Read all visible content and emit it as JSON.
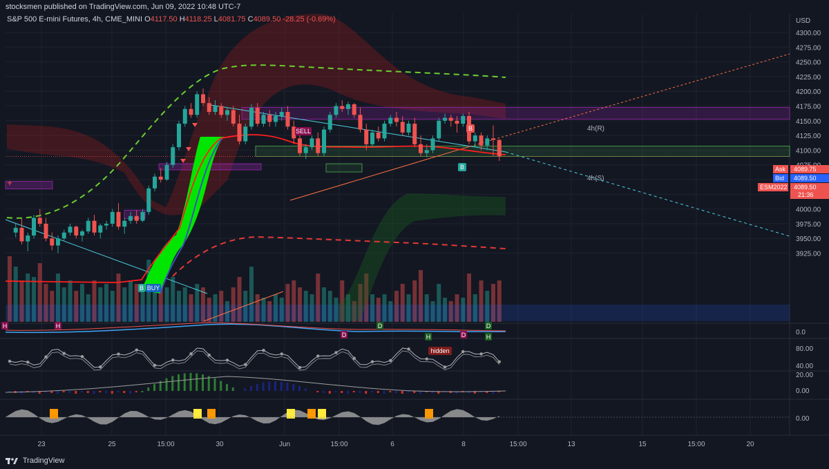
{
  "header": {
    "published": "stocksmen published on TradingView.com, Jun 09, 2022 10:48 UTC-7"
  },
  "legend": {
    "symbol": "S&P 500 E-mini Futures, 4h, CME_MINI",
    "open_label": "O",
    "open": "4117.50",
    "high_label": "H",
    "high": "4118.25",
    "low_label": "L",
    "low": "4081.75",
    "close_label": "C",
    "close": "4089.50",
    "change": "-28.25 (-0.69%)"
  },
  "price_axis": {
    "currency": "USD",
    "ticks": [
      "4300.00",
      "4275.00",
      "4250.00",
      "4225.00",
      "4200.00",
      "4175.00",
      "4150.00",
      "4125.00",
      "4100.00",
      "4075.00",
      "4050.00",
      "4025.00",
      "4000.00",
      "3975.00",
      "3950.00",
      "3925.00"
    ]
  },
  "price_tags": {
    "ask_label": "Ask",
    "ask": "4089.75",
    "bid_label": "Bid",
    "bid": "4089.50",
    "symbol_label": "ESM2022",
    "last": "4089.50",
    "countdown": "21:36",
    "colors": {
      "ask": "#ef5350",
      "bid": "#2962ff",
      "last": "#ef5350"
    }
  },
  "time_axis": {
    "labels": [
      "23",
      "25",
      "15:00",
      "30",
      "Jun",
      "15:00",
      "6",
      "8",
      "15:00",
      "13",
      "15",
      "15:00",
      "20"
    ]
  },
  "zones": {
    "resistance_label": "4h(R)",
    "support_label": "4h(S)"
  },
  "signals": {
    "buy": "BUY",
    "sell": "SELL",
    "b_marker": "B",
    "hidden": "hidden",
    "h_marker": "H",
    "d_marker": "D"
  },
  "panes": {
    "pane1_axis": [
      "0.0"
    ],
    "pane2_axis": [
      "80.00",
      "40.00"
    ],
    "pane3_axis": [
      "20.00",
      "0.00"
    ],
    "pane4_axis": [
      "0.00"
    ]
  },
  "footer": {
    "brand": "TradingView"
  },
  "chart_data": {
    "type": "candlestick",
    "symbol": "S&P 500 E-mini Futures",
    "interval": "4h",
    "ylim": [
      3905,
      4310
    ],
    "candles": [
      [
        4045,
        4048,
        4040,
        4044
      ],
      [
        3960,
        3975,
        3952,
        3968
      ],
      [
        3968,
        3985,
        3940,
        3945
      ],
      [
        3945,
        3960,
        3928,
        3955
      ],
      [
        3955,
        3990,
        3950,
        3985
      ],
      [
        3985,
        4000,
        3970,
        3975
      ],
      [
        3975,
        3985,
        3945,
        3950
      ],
      [
        3950,
        3960,
        3930,
        3938
      ],
      [
        3938,
        3955,
        3925,
        3950
      ],
      [
        3950,
        3965,
        3945,
        3960
      ],
      [
        3960,
        3975,
        3955,
        3970
      ],
      [
        3970,
        3972,
        3950,
        3955
      ],
      [
        3955,
        3965,
        3945,
        3962
      ],
      [
        3962,
        3985,
        3958,
        3980
      ],
      [
        3980,
        3990,
        3955,
        3960
      ],
      [
        3960,
        3975,
        3950,
        3972
      ],
      [
        3972,
        3980,
        3965,
        3975
      ],
      [
        3975,
        4000,
        3970,
        3995
      ],
      [
        3995,
        4010,
        3965,
        3970
      ],
      [
        3970,
        3985,
        3958,
        3980
      ],
      [
        3980,
        3995,
        3975,
        3988
      ],
      [
        3988,
        3998,
        3975,
        3980
      ],
      [
        3980,
        4000,
        3978,
        3995
      ],
      [
        3995,
        4040,
        3990,
        4035
      ],
      [
        4035,
        4060,
        4030,
        4055
      ],
      [
        4055,
        4070,
        4045,
        4050
      ],
      [
        4050,
        4080,
        4048,
        4075
      ],
      [
        4075,
        4110,
        4070,
        4105
      ],
      [
        4105,
        4150,
        4100,
        4145
      ],
      [
        4145,
        4175,
        4140,
        4170
      ],
      [
        4170,
        4180,
        4155,
        4160
      ],
      [
        4160,
        4200,
        4155,
        4195
      ],
      [
        4195,
        4205,
        4175,
        4180
      ],
      [
        4180,
        4190,
        4160,
        4165
      ],
      [
        4165,
        4185,
        4160,
        4175
      ],
      [
        4175,
        4180,
        4155,
        4160
      ],
      [
        4160,
        4172,
        4150,
        4168
      ],
      [
        4168,
        4175,
        4140,
        4145
      ],
      [
        4145,
        4160,
        4110,
        4115
      ],
      [
        4115,
        4145,
        4110,
        4140
      ],
      [
        4140,
        4178,
        4135,
        4172
      ],
      [
        4172,
        4180,
        4140,
        4145
      ],
      [
        4145,
        4165,
        4140,
        4160
      ],
      [
        4160,
        4168,
        4140,
        4148
      ],
      [
        4148,
        4165,
        4140,
        4158
      ],
      [
        4158,
        4172,
        4150,
        4165
      ],
      [
        4165,
        4175,
        4135,
        4140
      ],
      [
        4140,
        4150,
        4110,
        4120
      ],
      [
        4120,
        4132,
        4090,
        4095
      ],
      [
        4095,
        4110,
        4085,
        4105
      ],
      [
        4105,
        4125,
        4100,
        4120
      ],
      [
        4120,
        4130,
        4090,
        4095
      ],
      [
        4095,
        4140,
        4090,
        4135
      ],
      [
        4135,
        4165,
        4130,
        4160
      ],
      [
        4160,
        4180,
        4155,
        4175
      ],
      [
        4175,
        4185,
        4165,
        4170
      ],
      [
        4170,
        4182,
        4160,
        4178
      ],
      [
        4178,
        4180,
        4155,
        4160
      ],
      [
        4160,
        4172,
        4130,
        4135
      ],
      [
        4135,
        4145,
        4100,
        4110
      ],
      [
        4110,
        4135,
        4105,
        4130
      ],
      [
        4130,
        4140,
        4115,
        4120
      ],
      [
        4120,
        4150,
        4115,
        4145
      ],
      [
        4145,
        4160,
        4140,
        4155
      ],
      [
        4155,
        4165,
        4140,
        4148
      ],
      [
        4148,
        4158,
        4125,
        4130
      ],
      [
        4130,
        4150,
        4125,
        4145
      ],
      [
        4145,
        4155,
        4105,
        4110
      ],
      [
        4110,
        4125,
        4090,
        4095
      ],
      [
        4095,
        4110,
        4088,
        4100
      ],
      [
        4100,
        4125,
        4095,
        4120
      ],
      [
        4120,
        4155,
        4115,
        4150
      ],
      [
        4150,
        4162,
        4145,
        4155
      ],
      [
        4155,
        4160,
        4140,
        4150
      ],
      [
        4150,
        4158,
        4130,
        4145
      ],
      [
        4145,
        4162,
        4140,
        4158
      ],
      [
        4158,
        4165,
        4110,
        4115
      ],
      [
        4115,
        4130,
        4105,
        4125
      ],
      [
        4125,
        4130,
        4100,
        4108
      ],
      [
        4108,
        4125,
        4100,
        4120
      ],
      [
        4120,
        4142,
        4090,
        4117.5
      ],
      [
        4117.5,
        4118.25,
        4081.75,
        4089.5
      ]
    ]
  }
}
